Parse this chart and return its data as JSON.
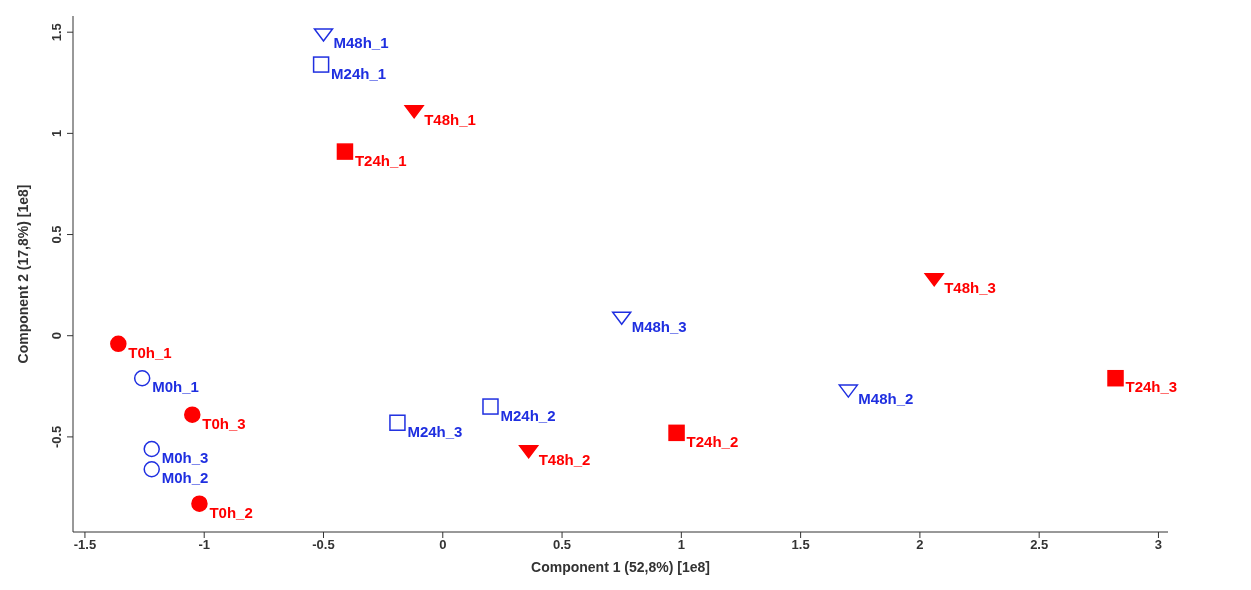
{
  "chart_data": {
    "type": "scatter",
    "xlabel": "Component 1 (52,8%) [1e8]",
    "ylabel": "Component 2 (17,8%) [1e8]",
    "xlim": [
      -1.55,
      3.04
    ],
    "ylim": [
      -0.97,
      1.58
    ],
    "xticks": [
      -1.5,
      -1,
      -0.5,
      0,
      0.5,
      1,
      1.5,
      2,
      2.5,
      3
    ],
    "yticks": [
      -0.5,
      0,
      0.5,
      1,
      1.5
    ],
    "grid": false,
    "legend": false,
    "series": [
      {
        "color": "#1f2fe0",
        "marker": "circle",
        "x": [
          -1.26,
          -1.22,
          -1.22
        ],
        "values": [
          -0.21,
          -0.66,
          -0.56
        ],
        "value_labels": [
          "M0h_1",
          "M0h_2",
          "M0h_3"
        ]
      },
      {
        "color": "#1f2fe0",
        "marker": "square",
        "x": [
          -0.51,
          0.2,
          -0.19
        ],
        "values": [
          1.34,
          -0.35,
          -0.43
        ],
        "value_labels": [
          "M24h_1",
          "M24h_2",
          "M24h_3"
        ]
      },
      {
        "color": "#1f2fe0",
        "marker": "triangle",
        "x": [
          -0.5,
          1.7,
          0.75
        ],
        "values": [
          1.49,
          -0.27,
          0.09
        ],
        "value_labels": [
          "M48h_1",
          "M48h_2",
          "M48h_3"
        ]
      },
      {
        "color": "#ff0000",
        "marker": "circle",
        "x": [
          -1.36,
          -1.02,
          -1.05
        ],
        "values": [
          -0.04,
          -0.83,
          -0.39
        ],
        "value_labels": [
          "T0h_1",
          "T0h_2",
          "T0h_3"
        ]
      },
      {
        "color": "#ff0000",
        "marker": "square",
        "x": [
          -0.41,
          0.98,
          2.82
        ],
        "values": [
          0.91,
          -0.48,
          -0.21
        ],
        "value_labels": [
          "T24h_1",
          "T24h_2",
          "T24h_3"
        ]
      },
      {
        "color": "#ff0000",
        "marker": "triangle",
        "x": [
          -0.12,
          0.36,
          2.06
        ],
        "values": [
          1.11,
          -0.57,
          0.28
        ],
        "value_labels": [
          "T48h_1",
          "T48h_2",
          "T48h_3"
        ]
      }
    ]
  }
}
